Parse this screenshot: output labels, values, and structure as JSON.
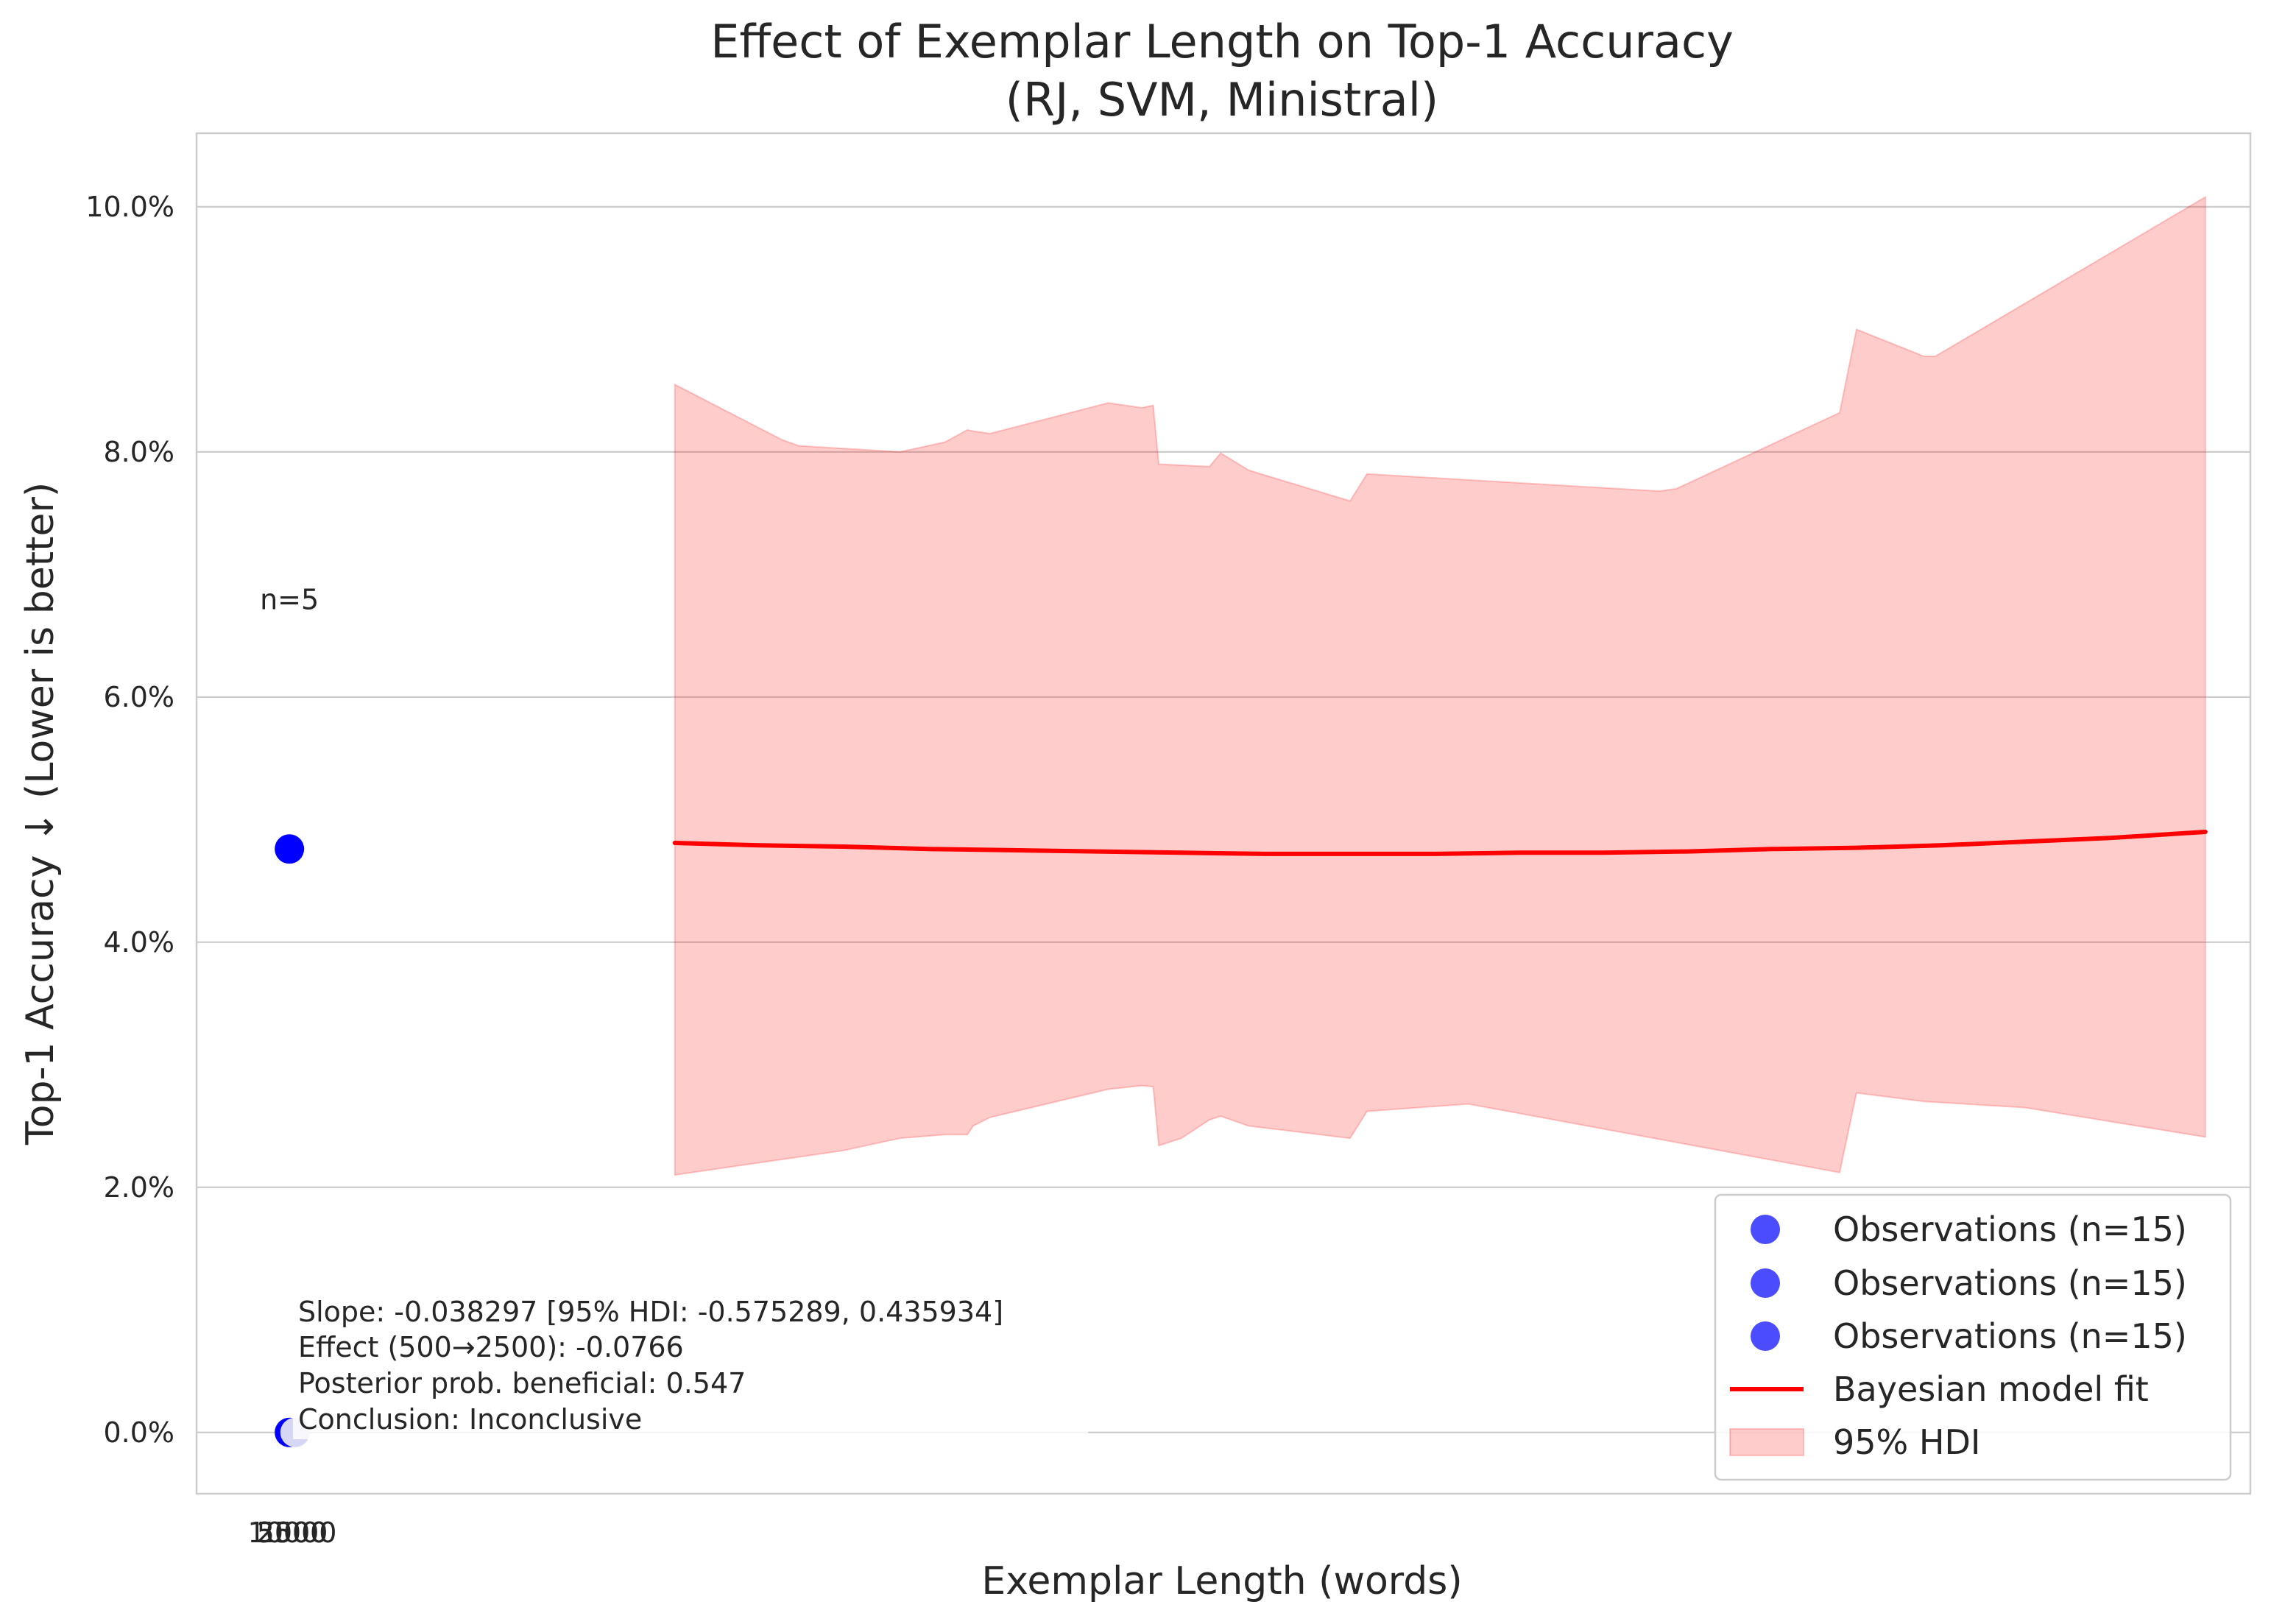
{
  "chart_data": {
    "type": "line",
    "title": "Effect of Exemplar Length on Top-1 Accuracy",
    "subtitle": "(RJ, SVM, Ministral)",
    "xlabel": "Exemplar Length (words)",
    "ylabel": "Top-1 Accuracy ↓ (Lower is better)",
    "ylim": [
      -0.5,
      10.6
    ],
    "xlim": [
      -2500,
      34000
    ],
    "x_tick_labels": [
      "2500",
      "5000",
      "10000"
    ],
    "y_ticks": [
      0,
      2,
      4,
      6,
      8,
      10
    ],
    "y_tick_labels": [
      "0.0%",
      "2.0%",
      "4.0%",
      "6.0%",
      "8.0%",
      "10.0%"
    ],
    "grid": "horizontal",
    "legend_position": "lower right",
    "series": [
      {
        "name": "Observations (n=15)",
        "type": "scatter",
        "color": "#0000ff",
        "points": [
          {
            "x": -850,
            "y": 4.76
          },
          {
            "x": -850,
            "y": 0.0
          },
          {
            "x": -750,
            "y": 0.0
          }
        ]
      },
      {
        "name": "Observations (n=15)",
        "type": "scatter",
        "color": "#0000ff",
        "points": []
      },
      {
        "name": "Observations (n=15)",
        "type": "scatter",
        "color": "#0000ff",
        "points": []
      },
      {
        "name": "Bayesian model fit",
        "type": "line",
        "color": "#ff0000",
        "x": [
          6000,
          7500,
          9000,
          10500,
          12000,
          13500,
          15000,
          16500,
          18000,
          19500,
          21000,
          22500,
          24000,
          25500,
          27000,
          28500,
          30000,
          31500,
          33200
        ],
        "y": [
          4.81,
          4.79,
          4.78,
          4.76,
          4.75,
          4.74,
          4.73,
          4.72,
          4.72,
          4.72,
          4.73,
          4.73,
          4.74,
          4.76,
          4.77,
          4.79,
          4.82,
          4.85,
          4.9
        ]
      },
      {
        "name": "95% HDI",
        "type": "band",
        "color": "#fcc9c9",
        "upper": {
          "x": [
            6000,
            7900,
            8200,
            10000,
            10800,
            11200,
            11300,
            11600,
            13700,
            14300,
            14500,
            14600,
            15500,
            15700,
            16200,
            18000,
            18300,
            23500,
            23800,
            26700,
            27000,
            28200,
            28400,
            33200
          ],
          "y": [
            8.55,
            8.1,
            8.05,
            8.0,
            8.08,
            8.18,
            8.17,
            8.15,
            8.4,
            8.36,
            8.38,
            7.9,
            7.88,
            7.99,
            7.85,
            7.6,
            7.82,
            7.68,
            7.7,
            8.32,
            9.0,
            8.78,
            8.78,
            10.08
          ]
        },
        "lower": {
          "x": [
            6000,
            9000,
            10000,
            10800,
            11200,
            11300,
            11600,
            13700,
            14300,
            14500,
            14600,
            15000,
            15500,
            15700,
            16200,
            18000,
            18300,
            20100,
            26700,
            27000,
            28200,
            30000,
            33200
          ],
          "y": [
            2.1,
            2.3,
            2.4,
            2.43,
            2.43,
            2.5,
            2.57,
            2.8,
            2.83,
            2.82,
            2.34,
            2.4,
            2.55,
            2.58,
            2.5,
            2.4,
            2.62,
            2.68,
            2.12,
            2.77,
            2.7,
            2.65,
            2.41
          ]
        }
      }
    ],
    "annotations": [
      {
        "text": "n=5",
        "x": -850,
        "y": 6.8
      },
      {
        "lines": [
          "Slope: -0.038297 [95% HDI: -0.575289, 0.435934]",
          "Effect (500→2500): -0.0766",
          "Posterior prob. beneficial: 0.547",
          "Conclusion: Inconclusive"
        ]
      }
    ]
  }
}
